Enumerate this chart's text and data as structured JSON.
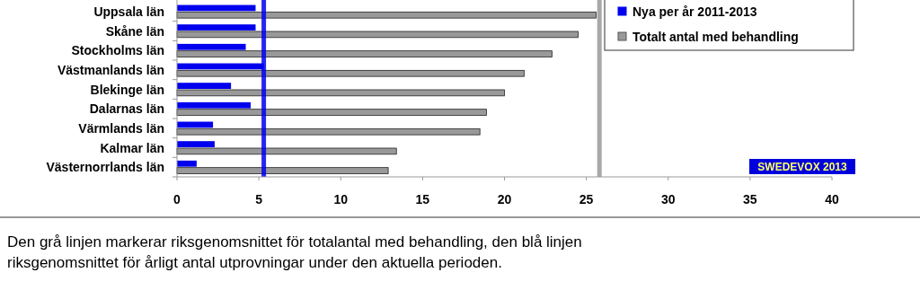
{
  "chart_data": {
    "type": "bar",
    "orientation": "horizontal",
    "categories": [
      "Uppsala län",
      "Skåne län",
      "Stockholms län",
      "Västmanlands län",
      "Blekinge län",
      "Dalarnas län",
      "Värmlands län",
      "Kalmar län",
      "Västernorrlands län"
    ],
    "series": [
      {
        "name": "Nya per år 2011-2013",
        "color": "#0000ee",
        "values": [
          4.8,
          4.8,
          4.2,
          5.3,
          3.3,
          4.5,
          2.2,
          2.3,
          1.2
        ]
      },
      {
        "name": "Totalt antal med behandling",
        "color": "#999999",
        "values": [
          25.6,
          24.5,
          22.9,
          21.2,
          20.0,
          18.9,
          18.5,
          13.4,
          12.9
        ]
      }
    ],
    "xlim": [
      0,
      40
    ],
    "xticks": [
      0,
      5,
      10,
      15,
      20,
      25,
      30,
      35,
      40
    ],
    "ref_lines": [
      {
        "axis": "x",
        "value": 5.3,
        "color": "#0000ee"
      },
      {
        "axis": "x",
        "value": 25.8,
        "color": "#999999"
      }
    ],
    "legend": "top right",
    "grid": false,
    "annotations": [
      "SWEDEVOX 2013",
      "Den grå linjen markerar riksgenomsnittet för totalantal med behandling, den blå linjen riksgenomsnittet för årligt antal utprovningar under den aktuella perioden."
    ]
  }
}
